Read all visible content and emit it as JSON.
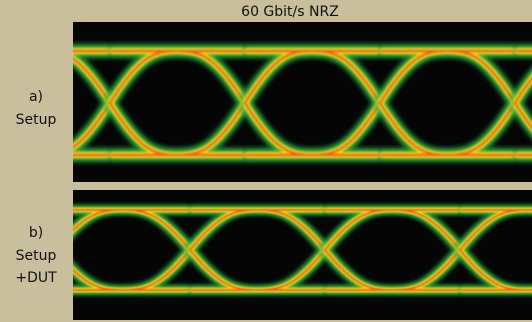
{
  "title": "60 Gbit/s NRZ",
  "panels": [
    {
      "lines": [
        "a)",
        "Setup"
      ]
    },
    {
      "lines": [
        "b)",
        "Setup",
        "+DUT"
      ]
    }
  ]
}
